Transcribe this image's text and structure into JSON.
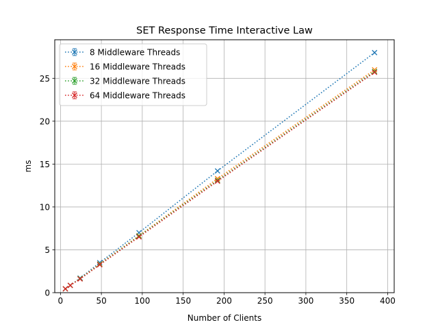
{
  "chart_data": {
    "type": "line",
    "title": "SET Response Time Interactive Law",
    "xlabel": "Number of Clients",
    "ylabel": "ms",
    "xlim": [
      -7,
      408
    ],
    "ylim": [
      0,
      29.5
    ],
    "xticks": [
      0,
      50,
      100,
      150,
      200,
      250,
      300,
      350,
      400
    ],
    "yticks": [
      0,
      5,
      10,
      15,
      20,
      25
    ],
    "grid": true,
    "legend_position": "top-left",
    "marker": "x",
    "linestyle": "dotted",
    "x": [
      6,
      12,
      24,
      48,
      96,
      192,
      384
    ],
    "series": [
      {
        "name": "8 Middleware Threads",
        "color": "#1f77b4",
        "values": [
          0.45,
          0.85,
          1.7,
          3.5,
          7.0,
          14.2,
          28.0
        ]
      },
      {
        "name": "16 Middleware Threads",
        "color": "#ff7f0e",
        "values": [
          0.45,
          0.85,
          1.65,
          3.35,
          6.65,
          13.3,
          26.0
        ]
      },
      {
        "name": "32 Middleware Threads",
        "color": "#2ca02c",
        "values": [
          0.45,
          0.85,
          1.65,
          3.3,
          6.6,
          13.1,
          25.8
        ]
      },
      {
        "name": "64 Middleware Threads",
        "color": "#d62728",
        "values": [
          0.45,
          0.85,
          1.6,
          3.25,
          6.5,
          13.0,
          25.7
        ]
      }
    ]
  }
}
